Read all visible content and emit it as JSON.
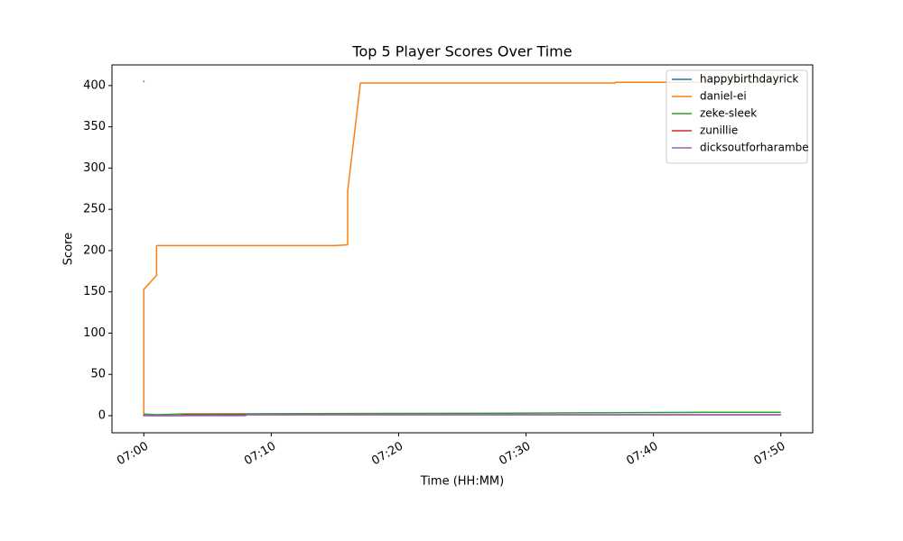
{
  "chart_data": {
    "type": "line",
    "title": "Top 5 Player Scores Over Time",
    "x_label": "Time (HH:MM)",
    "y_label": "Score",
    "series": [
      {
        "name": "happybirthdayrick",
        "color": "#1f77b4",
        "x": [
          "07:00",
          "07:00"
        ],
        "values": [
          405,
          405
        ]
      },
      {
        "name": "daniel-ei",
        "color": "#ff7f0e",
        "x": [
          "07:00",
          "07:00",
          "07:01",
          "07:01",
          "07:15",
          "07:16",
          "07:16",
          "07:17",
          "07:37",
          "07:37",
          "07:50"
        ],
        "values": [
          0,
          153,
          170,
          206,
          206,
          207,
          272,
          403,
          403,
          404,
          404
        ]
      },
      {
        "name": "zeke-sleek",
        "color": "#2ca02c",
        "x": [
          "07:00",
          "07:01",
          "07:03",
          "07:29",
          "07:44",
          "07:50"
        ],
        "values": [
          2,
          1,
          2,
          3,
          4,
          4
        ]
      },
      {
        "name": "zunillie",
        "color": "#d62728",
        "x": [
          "07:00",
          "07:00",
          "07:03",
          "07:03",
          "07:50"
        ],
        "values": [
          1,
          0,
          0,
          1,
          1
        ]
      },
      {
        "name": "dicksoutforharambe",
        "color": "#9467bd",
        "x": [
          "07:00",
          "07:08",
          "07:08",
          "07:50"
        ],
        "values": [
          0,
          0,
          1,
          1
        ]
      }
    ],
    "xlim": [
      "06:57:30",
      "07:52:30"
    ],
    "xticks": [
      "07:00",
      "07:10",
      "07:20",
      "07:30",
      "07:40",
      "07:50"
    ],
    "ylim": [
      -20.8,
      425
    ],
    "yticks": [
      0,
      50,
      100,
      150,
      200,
      250,
      300,
      350,
      400
    ],
    "grid": false,
    "legend": "upper right"
  }
}
